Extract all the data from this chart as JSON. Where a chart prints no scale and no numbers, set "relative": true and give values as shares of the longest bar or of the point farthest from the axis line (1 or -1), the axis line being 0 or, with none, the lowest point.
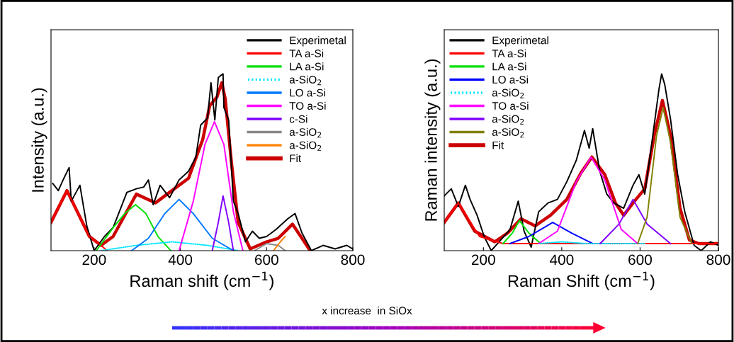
{
  "chart_data": [
    {
      "type": "line",
      "relative": true,
      "xlabel": "Raman shift (cm$^{−1}$)",
      "ylabel": "Intensity (a.u.)",
      "xlim": [
        100,
        800
      ],
      "xticks": [
        200,
        400,
        600,
        800
      ],
      "tick_labels": "x",
      "legend": "top right",
      "grid": false,
      "marker": "none",
      "annotations": [
        "x increase  in SiOx"
      ],
      "series": [
        {
          "name": "Experimetal",
          "color": "#000000",
          "x": [
            104,
            117,
            128,
            142,
            147,
            167,
            183,
            200,
            224,
            244,
            276,
            298,
            315,
            326,
            337,
            353,
            375,
            397,
            419,
            436,
            447,
            463,
            471,
            480,
            488,
            493,
            499,
            501,
            512,
            523,
            534,
            551,
            567,
            583,
            600,
            622,
            649,
            666,
            682,
            704,
            731,
            759,
            786,
            800
          ],
          "values": [
            0.38,
            0.34,
            0.4,
            0.47,
            0.28,
            0.37,
            0.14,
            0,
            0.08,
            0.13,
            0.33,
            0.35,
            0.36,
            0.4,
            0.26,
            0.37,
            0.3,
            0.4,
            0.45,
            0.53,
            0.71,
            0.75,
            0.95,
            0.74,
            0.98,
            0.99,
            1.0,
            0.81,
            0.74,
            0.28,
            0.21,
            0.05,
            0.11,
            0.07,
            0.08,
            0.12,
            0.18,
            0.21,
            0.1,
            0,
            0.03,
            0.01,
            0.03,
            0.01
          ]
        },
        {
          "name": "TA a-Si",
          "color": "#ff0000",
          "x": [
            100,
            137,
            189,
            216,
            230
          ],
          "values": [
            0.16,
            0.34,
            0.08,
            0.03,
            0
          ]
        },
        {
          "name": "LA a-Si",
          "color": "#00e000",
          "x": [
            205,
            244,
            271,
            296,
            320,
            348,
            378
          ],
          "values": [
            0,
            0.13,
            0.21,
            0.26,
            0.21,
            0.08,
            0
          ]
        },
        {
          "name": "a-SiO$_{2}$",
          "color": "#00e5ff",
          "line_style": "dotted",
          "x": [
            216,
            298,
            380,
            463,
            534
          ],
          "values": [
            0,
            0.03,
            0.05,
            0.03,
            0
          ]
        },
        {
          "name": "LO a-Si",
          "color": "#0077ff",
          "x": [
            287,
            326,
            364,
            397,
            430,
            474,
            523
          ],
          "values": [
            0,
            0.07,
            0.21,
            0.29,
            0.21,
            0.07,
            0
          ]
        },
        {
          "name": "TO a-Si",
          "color": "#ff00ff",
          "x": [
            397,
            430,
            457,
            479,
            501,
            523,
            545
          ],
          "values": [
            0,
            0.28,
            0.6,
            0.73,
            0.6,
            0.22,
            0
          ]
        },
        {
          "name": "c-Si",
          "color": "#8000ff",
          "x": [
            474,
            488,
            499,
            512,
            523
          ],
          "values": [
            0,
            0.16,
            0.31,
            0.16,
            0
          ]
        },
        {
          "name": "a-SiO$_{2}$",
          "color": "#888888",
          "x": [
            572,
            600,
            627,
            643
          ],
          "values": [
            0,
            0.04,
            0.03,
            0
          ]
        },
        {
          "name": "a-SiO$_{2}$",
          "color": "#ff8000",
          "x": [
            616,
            632,
            643
          ],
          "values": [
            0,
            0.05,
            0.08
          ]
        },
        {
          "name": "Fit",
          "color": "#cc0000",
          "x": [
            100,
            137,
            189,
            216,
            244,
            298,
            342,
            397,
            419,
            452,
            468,
            485,
            496,
            504,
            518,
            534,
            562,
            600,
            627,
            660,
            682,
            701
          ],
          "values": [
            0.16,
            0.34,
            0.08,
            0.03,
            0.08,
            0.32,
            0.27,
            0.37,
            0.41,
            0.63,
            0.82,
            0.87,
            0.95,
            0.86,
            0.51,
            0.16,
            0.01,
            0.05,
            0.07,
            0.15,
            0.07,
            0
          ]
        }
      ]
    },
    {
      "type": "line",
      "relative": true,
      "xlabel": "Raman Shift (cm$^{−1}$)",
      "ylabel": "Raman intensity (a.u.)",
      "xlim": [
        100,
        800
      ],
      "xticks": [
        200,
        400,
        600,
        800
      ],
      "tick_labels": "x",
      "legend": "top left",
      "grid": false,
      "marker": "none",
      "series": [
        {
          "name": "Experimetal",
          "color": "#000000",
          "x": [
            100,
            118,
            136,
            154,
            166,
            184,
            202,
            220,
            244,
            268,
            289,
            304,
            322,
            341,
            365,
            389,
            413,
            437,
            458,
            470,
            479,
            497,
            515,
            533,
            558,
            582,
            597,
            612,
            630,
            648,
            655,
            663,
            678,
            696,
            714,
            738,
            756,
            780,
            800
          ],
          "values": [
            0.31,
            0.35,
            0.25,
            0.37,
            0.29,
            0.2,
            0.08,
            0,
            0.06,
            0.12,
            0.28,
            0.11,
            0.02,
            0.22,
            0.27,
            0.29,
            0.39,
            0.51,
            0.68,
            0.58,
            0.69,
            0.45,
            0.32,
            0.27,
            0.24,
            0.37,
            0.43,
            0.32,
            0.61,
            0.91,
            1.0,
            0.94,
            0.74,
            0.43,
            0.22,
            0.03,
            0,
            0.05,
            0.03
          ]
        },
        {
          "name": "TA a-Si",
          "color": "#ff0000",
          "x": [
            100,
            136,
            190,
            250,
            800
          ],
          "values": [
            0.16,
            0.27,
            0.08,
            0.04,
            0.04
          ]
        },
        {
          "name": "LA a-Si",
          "color": "#00e000",
          "x": [
            250,
            274,
            292,
            316,
            346
          ],
          "values": [
            0.04,
            0.1,
            0.17,
            0.1,
            0.04
          ]
        },
        {
          "name": "LO a-Si",
          "color": "#0000ff",
          "x": [
            268,
            316,
            377,
            425,
            479
          ],
          "values": [
            0.04,
            0.08,
            0.16,
            0.1,
            0.04
          ]
        },
        {
          "name": "a-SiO$_{2}$",
          "color": "#00e5ff",
          "line_style": "dotted",
          "x": [
            341,
            401,
            461,
            612
          ],
          "values": [
            0.04,
            0.05,
            0.04,
            0.04
          ]
        },
        {
          "name": "TO a-Si",
          "color": "#ff00ff",
          "x": [
            341,
            389,
            437,
            475,
            510,
            552,
            594
          ],
          "values": [
            0.04,
            0.11,
            0.39,
            0.53,
            0.4,
            0.12,
            0.04
          ]
        },
        {
          "name": "a-SiO$_{2}$",
          "color": "#8000ff",
          "x": [
            498,
            546,
            582,
            618,
            678
          ],
          "values": [
            0.04,
            0.15,
            0.29,
            0.15,
            0.04
          ]
        },
        {
          "name": "a-SiO$_{2}$",
          "color": "#808000",
          "x": [
            594,
            618,
            642,
            659,
            678,
            702,
            732
          ],
          "values": [
            0.04,
            0.19,
            0.65,
            0.81,
            0.61,
            0.19,
            0.04
          ]
        },
        {
          "name": "Fit",
          "color": "#cc0000",
          "x": [
            100,
            136,
            178,
            229,
            262,
            296,
            332,
            371,
            413,
            449,
            477,
            510,
            537,
            558,
            582,
            612,
            636,
            657,
            678,
            702,
            726,
            750,
            800
          ],
          "values": [
            0.16,
            0.27,
            0.11,
            0.05,
            0.1,
            0.18,
            0.14,
            0.2,
            0.29,
            0.44,
            0.53,
            0.43,
            0.27,
            0.2,
            0.27,
            0.35,
            0.65,
            0.85,
            0.65,
            0.24,
            0.06,
            0.04,
            0.04
          ]
        }
      ]
    }
  ]
}
